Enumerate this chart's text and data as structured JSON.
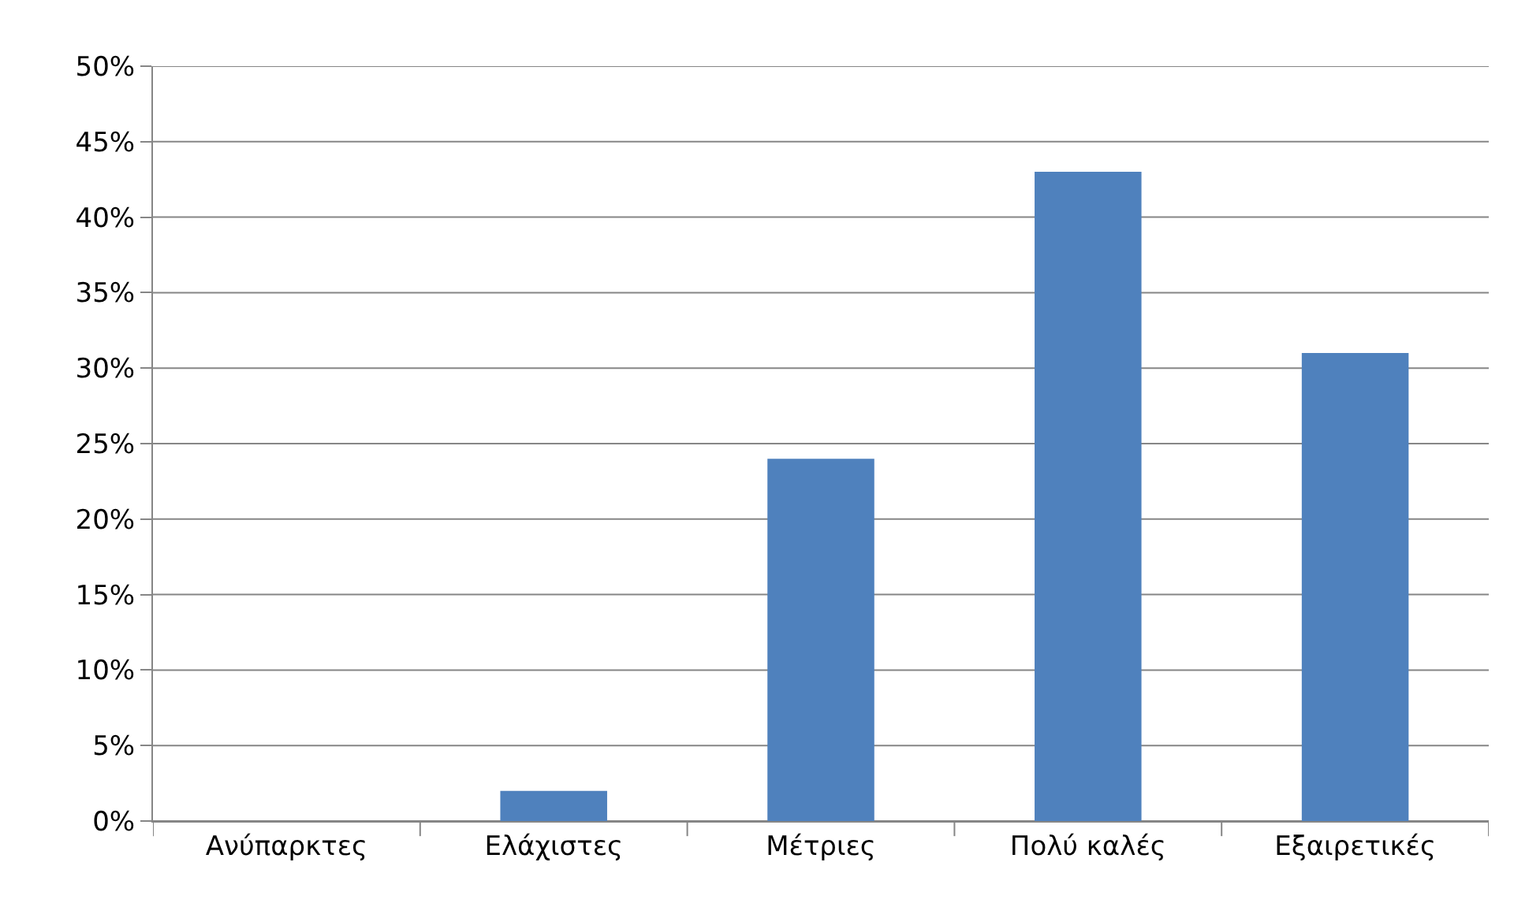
{
  "chart_data": {
    "type": "bar",
    "categories": [
      "Ανύπαρκτες",
      "Ελάχιστες",
      "Μέτριες",
      "Πολύ καλές",
      "Εξαιρετικές"
    ],
    "values": [
      0,
      2,
      24,
      43,
      31
    ],
    "color": "#4f81bd",
    "ylim": [
      0,
      50
    ],
    "yticks": [
      {
        "value": 0,
        "label": "0%"
      },
      {
        "value": 5,
        "label": "5%"
      },
      {
        "value": 10,
        "label": "10%"
      },
      {
        "value": 15,
        "label": "15%"
      },
      {
        "value": 20,
        "label": "20%"
      },
      {
        "value": 25,
        "label": "25%"
      },
      {
        "value": 30,
        "label": "30%"
      },
      {
        "value": 35,
        "label": "35%"
      },
      {
        "value": 40,
        "label": "40%"
      },
      {
        "value": 45,
        "label": "45%"
      },
      {
        "value": 50,
        "label": "50%"
      }
    ],
    "grid": "y"
  }
}
